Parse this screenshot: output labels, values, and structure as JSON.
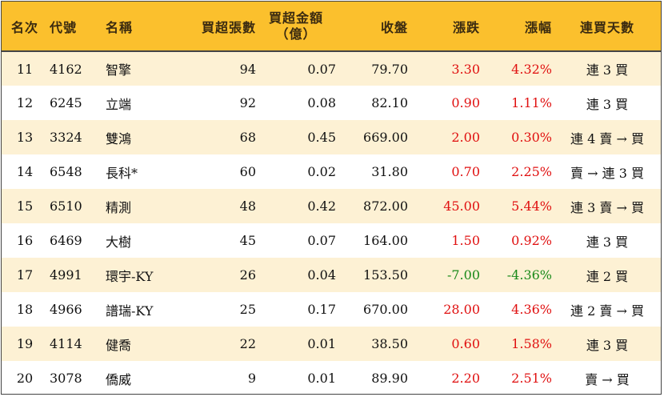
{
  "headers": {
    "rank": "名次",
    "code": "代號",
    "name": "名稱",
    "net_buy_lots": "買超張數",
    "net_buy_amount_line1": "買超金額",
    "net_buy_amount_line2": "（億）",
    "close": "收盤",
    "change": "漲跌",
    "pct": "漲幅",
    "streak": "連買天數"
  },
  "colors": {
    "header_bg": "#fbc02d",
    "stripe": "#fdf1d4",
    "up": "#e01010",
    "down": "#1a8a1a"
  },
  "rows": [
    {
      "rank": "11",
      "code": "4162",
      "name": "智擎",
      "lots": "94",
      "amount": "0.07",
      "close": "79.70",
      "change": "3.30",
      "pct": "4.32%",
      "streak": "連 3 買",
      "dir": "up"
    },
    {
      "rank": "12",
      "code": "6245",
      "name": "立端",
      "lots": "92",
      "amount": "0.08",
      "close": "82.10",
      "change": "0.90",
      "pct": "1.11%",
      "streak": "連 3 買",
      "dir": "up"
    },
    {
      "rank": "13",
      "code": "3324",
      "name": "雙鴻",
      "lots": "68",
      "amount": "0.45",
      "close": "669.00",
      "change": "2.00",
      "pct": "0.30%",
      "streak": "連 4 賣 → 買",
      "dir": "up"
    },
    {
      "rank": "14",
      "code": "6548",
      "name": "長科*",
      "lots": "60",
      "amount": "0.02",
      "close": "31.80",
      "change": "0.70",
      "pct": "2.25%",
      "streak": "賣 → 連 3 買",
      "dir": "up"
    },
    {
      "rank": "15",
      "code": "6510",
      "name": "精測",
      "lots": "48",
      "amount": "0.42",
      "close": "872.00",
      "change": "45.00",
      "pct": "5.44%",
      "streak": "連 3 賣 → 買",
      "dir": "up"
    },
    {
      "rank": "16",
      "code": "6469",
      "name": "大樹",
      "lots": "45",
      "amount": "0.07",
      "close": "164.00",
      "change": "1.50",
      "pct": "0.92%",
      "streak": "連 3 買",
      "dir": "up"
    },
    {
      "rank": "17",
      "code": "4991",
      "name": "環宇-KY",
      "lots": "26",
      "amount": "0.04",
      "close": "153.50",
      "change": "-7.00",
      "pct": "-4.36%",
      "streak": "連 2 買",
      "dir": "down"
    },
    {
      "rank": "18",
      "code": "4966",
      "name": "譜瑞-KY",
      "lots": "25",
      "amount": "0.17",
      "close": "670.00",
      "change": "28.00",
      "pct": "4.36%",
      "streak": "連 2 賣 → 買",
      "dir": "up"
    },
    {
      "rank": "19",
      "code": "4114",
      "name": "健喬",
      "lots": "22",
      "amount": "0.01",
      "close": "38.50",
      "change": "0.60",
      "pct": "1.58%",
      "streak": "連 3 買",
      "dir": "up"
    },
    {
      "rank": "20",
      "code": "3078",
      "name": "僑威",
      "lots": "9",
      "amount": "0.01",
      "close": "89.90",
      "change": "2.20",
      "pct": "2.51%",
      "streak": "賣 → 買",
      "dir": "up"
    }
  ]
}
